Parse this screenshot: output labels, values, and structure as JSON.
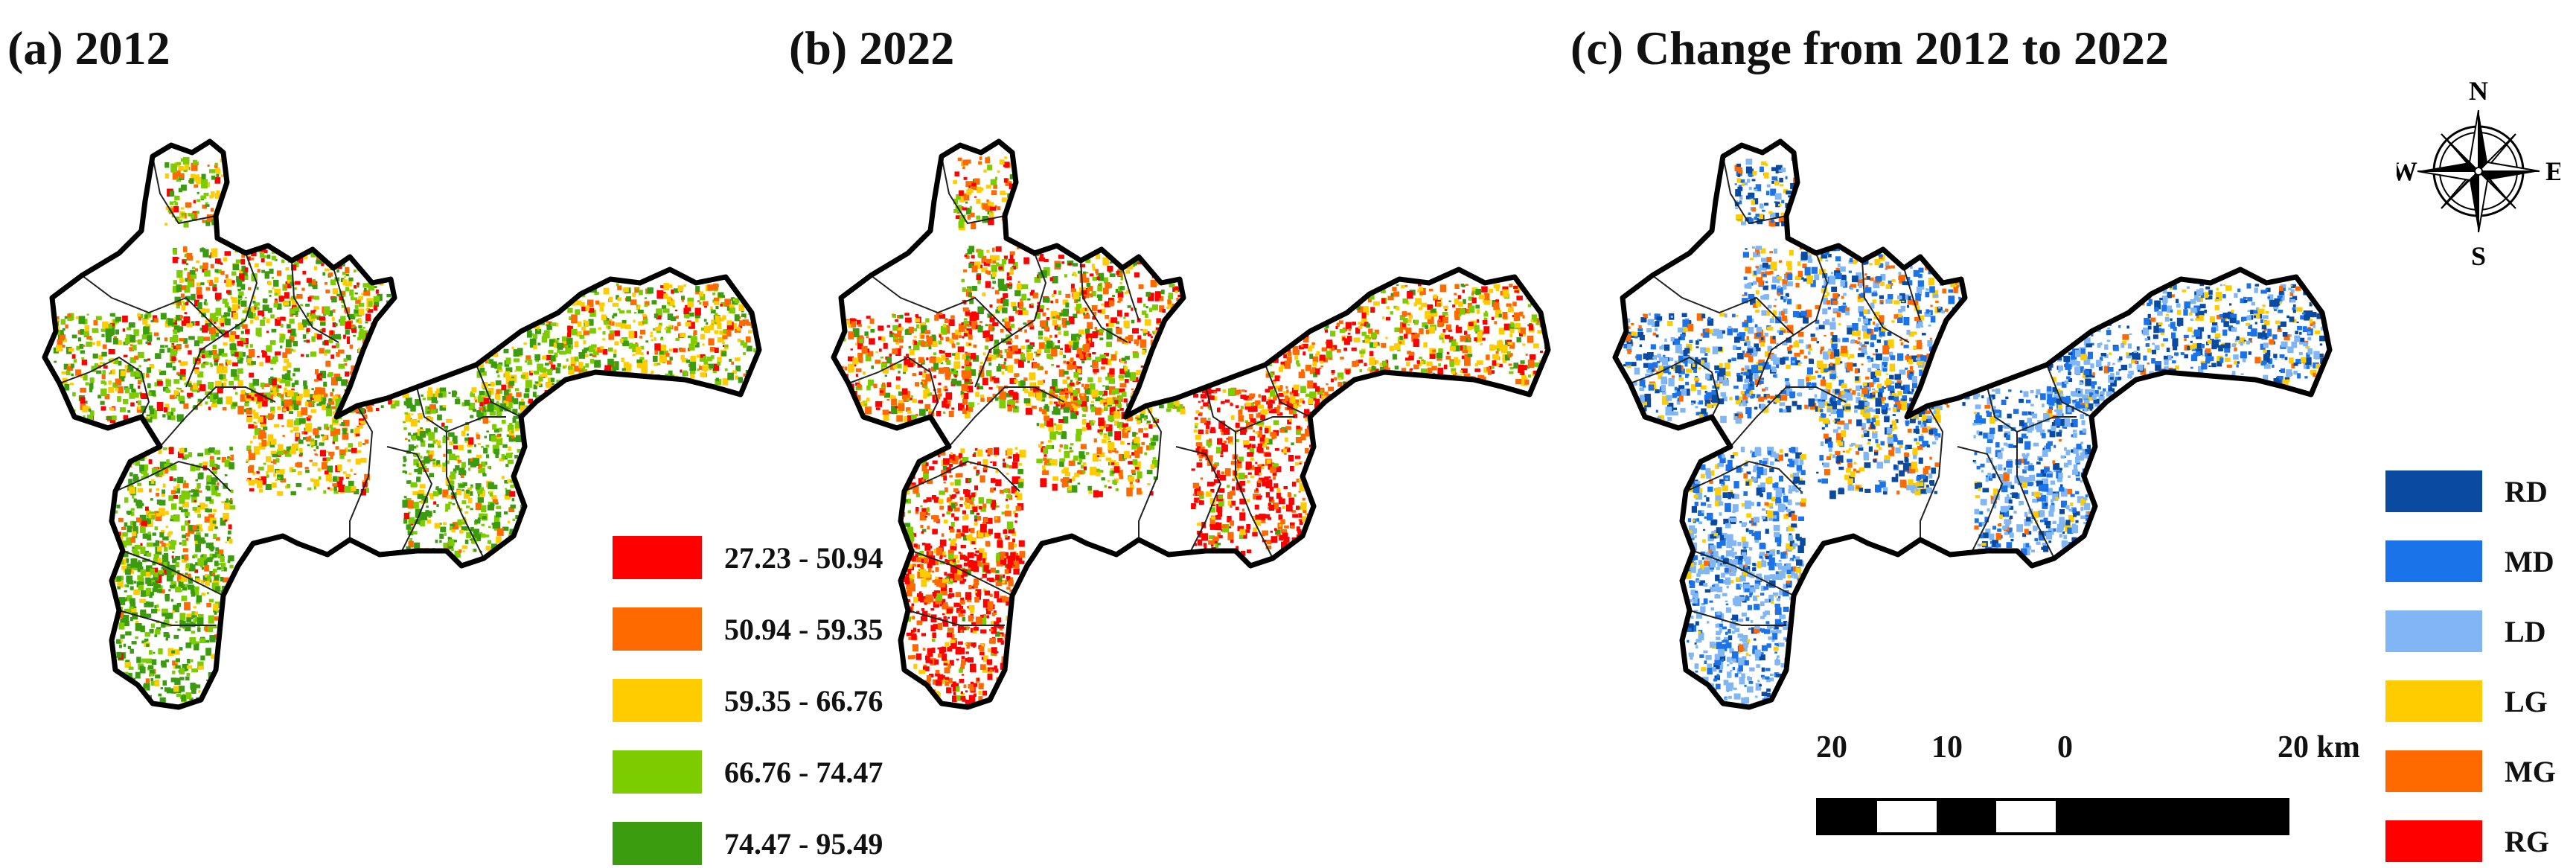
{
  "panels": [
    {
      "title": "(a) 2012",
      "dominant": [
        "#3b9c0f",
        "#7ccc00",
        "#ffcc00",
        "#ff6a00",
        "#ff0000"
      ]
    },
    {
      "title": "(b) 2022",
      "dominant": [
        "#ff0000",
        "#ff6a00",
        "#ffcc00",
        "#7ccc00",
        "#3b9c0f"
      ]
    },
    {
      "title": "(c) Change from 2012 to 2022",
      "dominant": [
        "#7fb6f3",
        "#1a73e8",
        "#0a4aa0",
        "#ffcc00",
        "#ff6a00"
      ]
    }
  ],
  "value_legend": {
    "items": [
      {
        "label": "27.23 - 50.94",
        "color": "#ff0000"
      },
      {
        "label": "50.94 - 59.35",
        "color": "#ff6a00"
      },
      {
        "label": "59.35 - 66.76",
        "color": "#ffcc00"
      },
      {
        "label": "66.76 - 74.47",
        "color": "#7ccc00"
      },
      {
        "label": "74.47 - 95.49",
        "color": "#3b9c0f"
      }
    ]
  },
  "change_legend": {
    "items": [
      {
        "label": "RD",
        "color": "#0a4aa0"
      },
      {
        "label": "MD",
        "color": "#1a73e8"
      },
      {
        "label": "LD",
        "color": "#7fb6f3"
      },
      {
        "label": "LG",
        "color": "#ffcc00"
      },
      {
        "label": "MG",
        "color": "#ff6a00"
      },
      {
        "label": "RG",
        "color": "#ff0000"
      }
    ]
  },
  "scale_bar": {
    "labels": [
      "20",
      "10",
      "0",
      "20 km"
    ]
  },
  "compass": {
    "n": "N",
    "s": "S",
    "e": "E",
    "w": "W"
  }
}
